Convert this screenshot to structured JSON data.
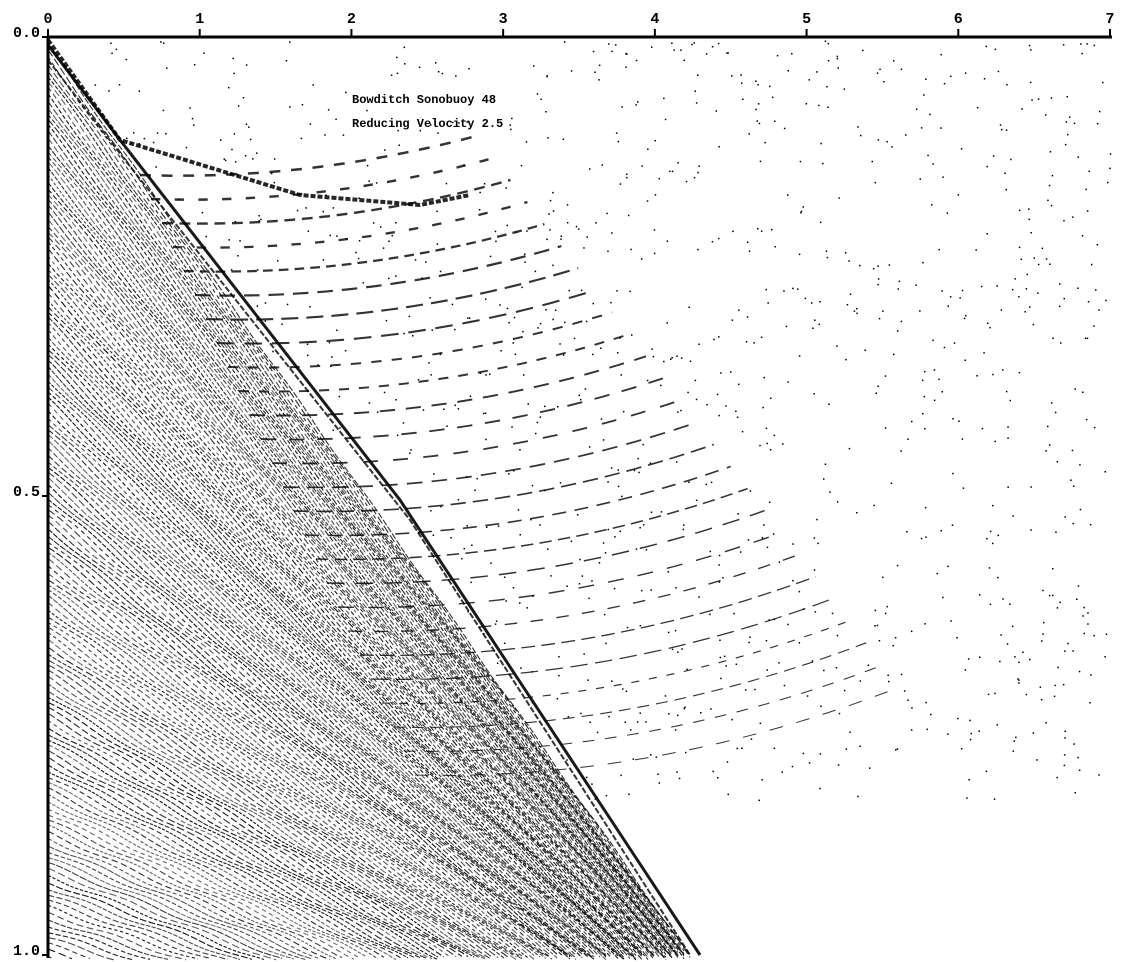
{
  "chart_data": {
    "type": "seismic",
    "annotations": [
      "Bowditch Sonobuoy 48",
      "Reducing Velocity 2.5"
    ],
    "xlim": [
      0,
      7
    ],
    "xticks": [
      0,
      1,
      2,
      3,
      4,
      5,
      6,
      7
    ],
    "ylim": [
      0,
      1
    ],
    "yticks": [
      {
        "value": 0,
        "label": "0.0"
      },
      0.5,
      {
        "value": 1,
        "label": "1.0"
      }
    ],
    "grid": false
  }
}
